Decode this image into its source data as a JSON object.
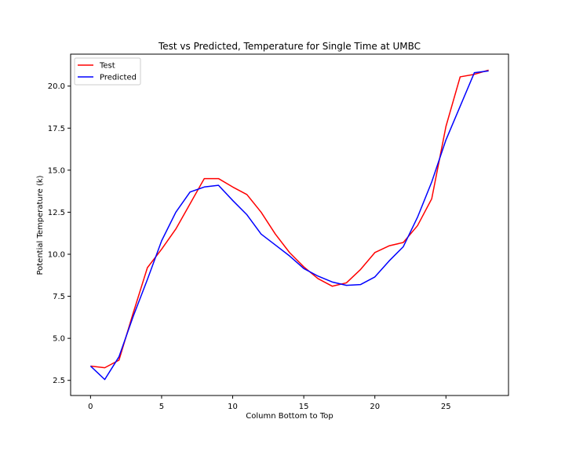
{
  "chart_data": {
    "type": "line",
    "title": "Test vs Predicted, Temperature for Single Time at UMBC",
    "xlabel": "Column Bottom to Top",
    "ylabel": "Potential Temperature (k)",
    "xlim": [
      -1.4,
      29.4
    ],
    "ylim": [
      1.6,
      21.9
    ],
    "xticks": [
      0,
      5,
      10,
      15,
      20,
      25
    ],
    "xtick_labels": [
      "0",
      "5",
      "10",
      "15",
      "20",
      "25"
    ],
    "yticks": [
      2.5,
      5.0,
      7.5,
      10.0,
      12.5,
      15.0,
      17.5,
      20.0
    ],
    "ytick_labels": [
      "2.5",
      "5.0",
      "7.5",
      "10.0",
      "12.5",
      "15.0",
      "17.5",
      "20.0"
    ],
    "legend_position": "upper left",
    "grid": false,
    "x": [
      0,
      1,
      2,
      3,
      4,
      5,
      6,
      7,
      8,
      9,
      10,
      11,
      12,
      13,
      14,
      15,
      16,
      17,
      18,
      19,
      20,
      21,
      22,
      23,
      24,
      25,
      26,
      27,
      28
    ],
    "series": [
      {
        "name": "Test",
        "color": "#ff0000",
        "values": [
          3.35,
          3.25,
          3.7,
          6.5,
          9.2,
          10.3,
          11.5,
          13.0,
          14.5,
          14.5,
          14.0,
          13.55,
          12.5,
          11.2,
          10.1,
          9.25,
          8.55,
          8.1,
          8.3,
          9.1,
          10.1,
          10.5,
          10.7,
          11.7,
          13.3,
          17.6,
          20.55,
          20.7,
          20.95
        ]
      },
      {
        "name": "Predicted",
        "color": "#0000ff",
        "values": [
          3.35,
          2.55,
          3.9,
          6.3,
          8.5,
          10.8,
          12.5,
          13.7,
          14.0,
          14.1,
          13.2,
          12.35,
          11.2,
          10.55,
          9.9,
          9.15,
          8.7,
          8.35,
          8.15,
          8.2,
          8.65,
          9.6,
          10.45,
          12.2,
          14.3,
          16.8,
          18.8,
          20.8,
          20.9
        ]
      }
    ]
  }
}
